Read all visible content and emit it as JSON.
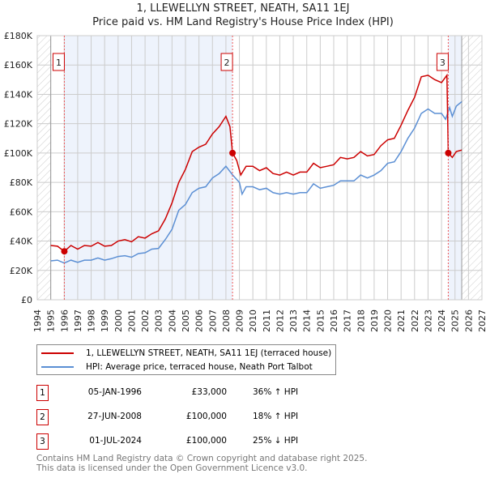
{
  "chart_data": {
    "type": "line",
    "title": "1, LLEWELLYN STREET, NEATH, SA11 1EJ",
    "subtitle": "Price paid vs. HM Land Registry's House Price Index (HPI)",
    "xlim": [
      1994,
      2027
    ],
    "ylim": [
      0,
      180000
    ],
    "x_ticks": [
      "1994",
      "1995",
      "1996",
      "1997",
      "1998",
      "1999",
      "2000",
      "2001",
      "2002",
      "2003",
      "2004",
      "2005",
      "2006",
      "2007",
      "2008",
      "2009",
      "2010",
      "2011",
      "2012",
      "2013",
      "2014",
      "2015",
      "2016",
      "2017",
      "2018",
      "2019",
      "2020",
      "2021",
      "2022",
      "2023",
      "2024",
      "2025",
      "2026",
      "2027"
    ],
    "y_ticks": [
      {
        "v": 0,
        "label": "£0"
      },
      {
        "v": 20000,
        "label": "£20K"
      },
      {
        "v": 40000,
        "label": "£40K"
      },
      {
        "v": 60000,
        "label": "£60K"
      },
      {
        "v": 80000,
        "label": "£80K"
      },
      {
        "v": 100000,
        "label": "£100K"
      },
      {
        "v": 120000,
        "label": "£120K"
      },
      {
        "v": 140000,
        "label": "£140K"
      },
      {
        "v": 160000,
        "label": "£160K"
      },
      {
        "v": 180000,
        "label": "£180K"
      }
    ],
    "grid": true,
    "data_range": [
      1995,
      2025.5
    ],
    "series": [
      {
        "name": "1, LLEWELLYN STREET, NEATH, SA11 1EJ (terraced house)",
        "color": "#cc0000",
        "points": [
          [
            1995,
            37000
          ],
          [
            1995.5,
            36500
          ],
          [
            1996.01,
            33000
          ],
          [
            1996.5,
            37000
          ],
          [
            1997,
            34500
          ],
          [
            1997.5,
            37000
          ],
          [
            1998,
            36500
          ],
          [
            1998.5,
            39000
          ],
          [
            1999,
            36500
          ],
          [
            1999.5,
            37000
          ],
          [
            2000,
            40000
          ],
          [
            2000.5,
            41000
          ],
          [
            2001,
            39500
          ],
          [
            2001.5,
            43000
          ],
          [
            2002,
            42000
          ],
          [
            2002.5,
            45000
          ],
          [
            2003,
            47000
          ],
          [
            2003.5,
            55000
          ],
          [
            2004,
            66000
          ],
          [
            2004.5,
            80000
          ],
          [
            2005,
            89000
          ],
          [
            2005.5,
            101000
          ],
          [
            2006,
            104000
          ],
          [
            2006.5,
            106000
          ],
          [
            2007,
            113000
          ],
          [
            2007.5,
            118000
          ],
          [
            2008,
            125000
          ],
          [
            2008.3,
            118000
          ],
          [
            2008.49,
            100000
          ],
          [
            2008.8,
            95000
          ],
          [
            2009.1,
            85000
          ],
          [
            2009.5,
            91000
          ],
          [
            2010,
            91000
          ],
          [
            2010.5,
            88000
          ],
          [
            2011,
            90000
          ],
          [
            2011.5,
            86000
          ],
          [
            2012,
            85000
          ],
          [
            2012.5,
            87000
          ],
          [
            2013,
            85000
          ],
          [
            2013.5,
            87000
          ],
          [
            2014,
            87000
          ],
          [
            2014.5,
            93000
          ],
          [
            2015,
            90000
          ],
          [
            2015.5,
            91000
          ],
          [
            2016,
            92000
          ],
          [
            2016.5,
            97000
          ],
          [
            2017,
            96000
          ],
          [
            2017.5,
            97000
          ],
          [
            2018,
            101000
          ],
          [
            2018.5,
            98000
          ],
          [
            2019,
            99000
          ],
          [
            2019.5,
            105000
          ],
          [
            2020,
            109000
          ],
          [
            2020.5,
            110000
          ],
          [
            2021,
            119000
          ],
          [
            2021.5,
            129000
          ],
          [
            2022,
            138000
          ],
          [
            2022.5,
            152000
          ],
          [
            2023,
            153000
          ],
          [
            2023.5,
            150000
          ],
          [
            2024,
            148000
          ],
          [
            2024.4,
            153000
          ],
          [
            2024.5,
            100000
          ],
          [
            2024.8,
            97000
          ],
          [
            2025.1,
            101000
          ],
          [
            2025.5,
            102000
          ]
        ]
      },
      {
        "name": "HPI: Average price, terraced house, Neath Port Talbot",
        "color": "#5b8fd4",
        "points": [
          [
            1995,
            26500
          ],
          [
            1995.5,
            27000
          ],
          [
            1996,
            25000
          ],
          [
            1996.5,
            27000
          ],
          [
            1997,
            25500
          ],
          [
            1997.5,
            27000
          ],
          [
            1998,
            27000
          ],
          [
            1998.5,
            28500
          ],
          [
            1999,
            27000
          ],
          [
            1999.5,
            28000
          ],
          [
            2000,
            29500
          ],
          [
            2000.5,
            30000
          ],
          [
            2001,
            29000
          ],
          [
            2001.5,
            31500
          ],
          [
            2002,
            32000
          ],
          [
            2002.5,
            34500
          ],
          [
            2003,
            35000
          ],
          [
            2003.5,
            41000
          ],
          [
            2004,
            48000
          ],
          [
            2004.5,
            61000
          ],
          [
            2005,
            65000
          ],
          [
            2005.5,
            73000
          ],
          [
            2006,
            76000
          ],
          [
            2006.5,
            77000
          ],
          [
            2007,
            83000
          ],
          [
            2007.5,
            86000
          ],
          [
            2008,
            91000
          ],
          [
            2008.5,
            85000
          ],
          [
            2009,
            80000
          ],
          [
            2009.2,
            72000
          ],
          [
            2009.5,
            77000
          ],
          [
            2010,
            77000
          ],
          [
            2010.5,
            75000
          ],
          [
            2011,
            76000
          ],
          [
            2011.5,
            73000
          ],
          [
            2012,
            72000
          ],
          [
            2012.5,
            73000
          ],
          [
            2013,
            72000
          ],
          [
            2013.5,
            73000
          ],
          [
            2014,
            73000
          ],
          [
            2014.5,
            79000
          ],
          [
            2015,
            76000
          ],
          [
            2015.5,
            77000
          ],
          [
            2016,
            78000
          ],
          [
            2016.5,
            81000
          ],
          [
            2017,
            81000
          ],
          [
            2017.5,
            81000
          ],
          [
            2018,
            85000
          ],
          [
            2018.5,
            83000
          ],
          [
            2019,
            85000
          ],
          [
            2019.5,
            88000
          ],
          [
            2020,
            93000
          ],
          [
            2020.5,
            94000
          ],
          [
            2021,
            101000
          ],
          [
            2021.5,
            110000
          ],
          [
            2022,
            117000
          ],
          [
            2022.5,
            127000
          ],
          [
            2023,
            130000
          ],
          [
            2023.5,
            127000
          ],
          [
            2024,
            127000
          ],
          [
            2024.3,
            123000
          ],
          [
            2024.6,
            131000
          ],
          [
            2024.8,
            125000
          ],
          [
            2025.1,
            132000
          ],
          [
            2025.5,
            135000
          ]
        ]
      }
    ],
    "sales": [
      {
        "label": "1",
        "x": 1996.01,
        "value": 33000
      },
      {
        "label": "2",
        "x": 2008.49,
        "value": 100000
      },
      {
        "label": "3",
        "x": 2024.5,
        "value": 100000
      }
    ]
  },
  "legend": {
    "property": "1, LLEWELLYN STREET, NEATH, SA11 1EJ (terraced house)",
    "hpi": "HPI: Average price, terraced house, Neath Port Talbot"
  },
  "transactions": [
    {
      "num": "1",
      "date": "05-JAN-1996",
      "price": "£33,000",
      "hpi": "36% ↑ HPI"
    },
    {
      "num": "2",
      "date": "27-JUN-2008",
      "price": "£100,000",
      "hpi": "18% ↑ HPI"
    },
    {
      "num": "3",
      "date": "01-JUL-2024",
      "price": "£100,000",
      "hpi": "25% ↓ HPI"
    }
  ],
  "footer": {
    "line1": "Contains HM Land Registry data © Crown copyright and database right 2025.",
    "line2": "This data is licensed under the Open Government Licence v3.0."
  }
}
